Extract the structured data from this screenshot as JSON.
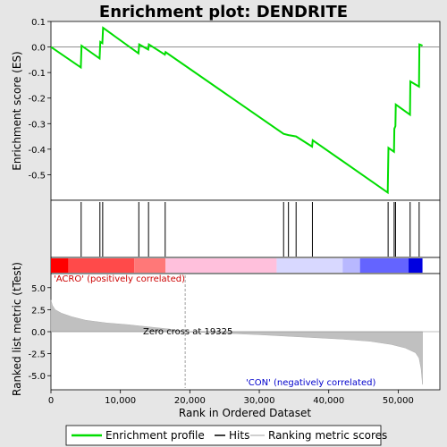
{
  "chart_data": {
    "type": "line",
    "title": "Enrichment plot: DENDRITE",
    "colors": {
      "enrichment": "#00dd00",
      "hits": "#000000",
      "metric_fill": "#c0c0c0",
      "pos_band": "#ff0000",
      "neg_band": "#0000ff",
      "zero_cross_line": "#a0a0a0"
    },
    "panels": {
      "enrichment": {
        "ylabel": "Enrichment score (ES)",
        "ylim": [
          -0.6,
          0.1
        ],
        "yticks": [
          0.1,
          0.0,
          -0.1,
          -0.2,
          -0.3,
          -0.4,
          -0.5
        ],
        "ytick_labels": [
          "0.1",
          "0.0",
          "-0.1",
          "-0.2",
          "-0.3",
          "-0.4",
          "-0.5"
        ],
        "zero_line": true
      },
      "metric": {
        "ylabel": "Ranked list metric (tTest)",
        "ylim": [
          -6.6,
          6.6
        ],
        "yticks": [
          5.0,
          2.5,
          0.0,
          -2.5,
          -5.0
        ],
        "ytick_labels": [
          "5.0",
          "2.5",
          "0.0",
          "-2.5",
          "-5.0"
        ],
        "pos_label": "'ACRO' (positively correlated)",
        "neg_label": "'CON' (negatively correlated)",
        "zero_cross_label": "Zero cross at 19325",
        "zero_cross": 19325
      }
    },
    "xlabel": "Rank in Ordered Dataset",
    "xlim": [
      0,
      56000
    ],
    "xticks": [
      0,
      10000,
      20000,
      30000,
      40000,
      50000
    ],
    "xtick_labels": [
      "0",
      "10,000",
      "20,000",
      "30,000",
      "40,000",
      "50,000"
    ],
    "n_genes": 53500,
    "es_points": [
      [
        0,
        0.0
      ],
      [
        4300,
        -0.08
      ],
      [
        4400,
        0.005
      ],
      [
        7000,
        -0.045
      ],
      [
        7100,
        0.02
      ],
      [
        7400,
        0.015
      ],
      [
        7500,
        0.075
      ],
      [
        12600,
        -0.025
      ],
      [
        12700,
        0.01
      ],
      [
        14000,
        -0.01
      ],
      [
        14100,
        0.01
      ],
      [
        16400,
        -0.03
      ],
      [
        16500,
        -0.02
      ],
      [
        33500,
        -0.34
      ],
      [
        34200,
        -0.345
      ],
      [
        35300,
        -0.35
      ],
      [
        37600,
        -0.39
      ],
      [
        37700,
        -0.365
      ],
      [
        48500,
        -0.57
      ],
      [
        48550,
        -0.48
      ],
      [
        48600,
        -0.395
      ],
      [
        49400,
        -0.41
      ],
      [
        49450,
        -0.32
      ],
      [
        49600,
        -0.31
      ],
      [
        49650,
        -0.225
      ],
      [
        51700,
        -0.265
      ],
      [
        51750,
        -0.135
      ],
      [
        53000,
        -0.155
      ],
      [
        53050,
        0.01
      ],
      [
        53500,
        0.005
      ]
    ],
    "hits": [
      4350,
      7050,
      7450,
      12650,
      14050,
      16450,
      33500,
      34200,
      35300,
      37650,
      48550,
      49420,
      49620,
      51720,
      53020
    ],
    "metric_curve": [
      [
        0,
        3.6
      ],
      [
        200,
        3.0
      ],
      [
        600,
        2.5
      ],
      [
        1500,
        2.1
      ],
      [
        3000,
        1.7
      ],
      [
        5000,
        1.3
      ],
      [
        8000,
        1.0
      ],
      [
        11000,
        0.8
      ],
      [
        14000,
        0.55
      ],
      [
        17000,
        0.3
      ],
      [
        19325,
        0.0
      ],
      [
        24000,
        -0.15
      ],
      [
        30000,
        -0.35
      ],
      [
        36000,
        -0.6
      ],
      [
        42000,
        -0.85
      ],
      [
        46000,
        -1.1
      ],
      [
        49000,
        -1.45
      ],
      [
        51000,
        -1.85
      ],
      [
        52500,
        -2.4
      ],
      [
        53000,
        -3.0
      ],
      [
        53300,
        -4.2
      ],
      [
        53500,
        -6.0
      ]
    ],
    "band_segments": [
      [
        0,
        2500,
        "#ff0000"
      ],
      [
        2500,
        12000,
        "#ff4a4a"
      ],
      [
        12000,
        16500,
        "#ff7878"
      ],
      [
        16500,
        32500,
        "#ffc0dc"
      ],
      [
        32500,
        42000,
        "#d8d8ff"
      ],
      [
        42000,
        44500,
        "#b8b8ff"
      ],
      [
        44500,
        51500,
        "#6464ff"
      ],
      [
        51500,
        53500,
        "#0000e0"
      ]
    ],
    "legend": [
      "Enrichment profile",
      "Hits",
      "Ranking metric scores"
    ]
  }
}
